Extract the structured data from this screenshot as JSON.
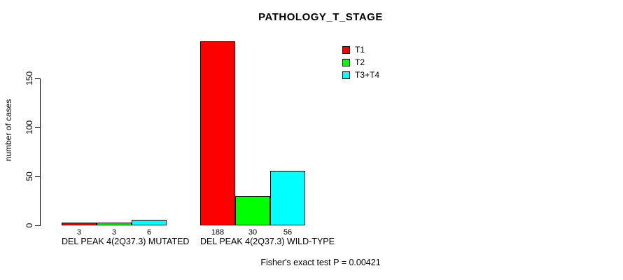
{
  "title": "PATHOLOGY_T_STAGE",
  "footer_note": "Fisher's exact test P = 0.00421",
  "y_axis": {
    "label": "number of cases",
    "tick_values": [
      0,
      50,
      100,
      150
    ]
  },
  "legend": {
    "position": "top-right",
    "entries": [
      {
        "label": "T1",
        "color": "#ff0000"
      },
      {
        "label": "T2",
        "color": "#00ff00"
      },
      {
        "label": "T3+T4",
        "color": "#00ffff"
      }
    ]
  },
  "chart_data": {
    "type": "bar",
    "title": "PATHOLOGY_T_STAGE",
    "xlabel": "",
    "ylabel": "number of cases",
    "categories": [
      "DEL PEAK 4(2Q37.3) MUTATED",
      "DEL PEAK 4(2Q37.3) WILD-TYPE"
    ],
    "series": [
      {
        "name": "T1",
        "color": "#ff0000",
        "values": [
          3,
          188
        ]
      },
      {
        "name": "T2",
        "color": "#00ff00",
        "values": [
          3,
          30
        ]
      },
      {
        "name": "T3+T4",
        "color": "#00ffff",
        "values": [
          6,
          56
        ]
      }
    ],
    "value_labels_shown": true,
    "y_ticks": [
      0,
      50,
      100,
      150
    ],
    "ylim": [
      0,
      188
    ],
    "grid": false,
    "legend_position": "top-right",
    "annotation": "Fisher's exact test P = 0.00421"
  }
}
